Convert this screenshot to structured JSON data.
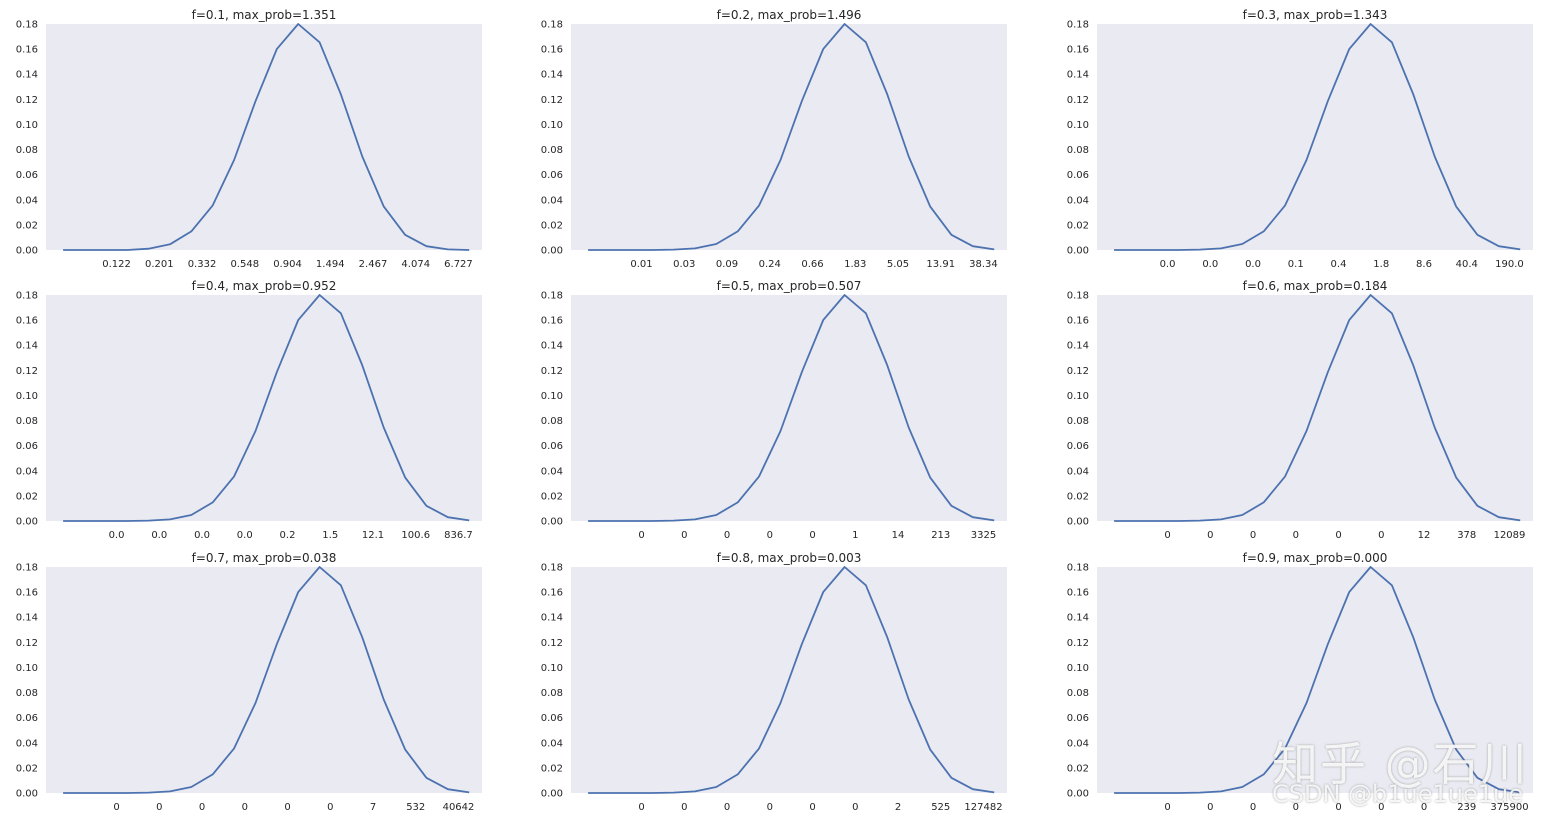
{
  "chart_data": [
    {
      "type": "line",
      "title": "f=0.1, max_prob=1.351",
      "xticklabels": [
        "0.122",
        "0.201",
        "0.332",
        "0.548",
        "0.904",
        "1.494",
        "2.467",
        "4.074",
        "6.727"
      ],
      "x": [
        -5,
        -4,
        -3,
        -2,
        -1,
        0,
        1,
        2,
        3,
        4,
        5,
        6,
        7,
        8,
        9,
        10,
        11,
        12,
        13,
        14
      ],
      "y": [
        0.0,
        0.0,
        0.0,
        0.0,
        0.001,
        0.0045,
        0.0148,
        0.0355,
        0.0717,
        0.1185,
        0.16,
        0.18,
        0.1654,
        0.1239,
        0.0745,
        0.0347,
        0.0121,
        0.003,
        0.0005,
        0.0
      ],
      "ylim": [
        0,
        0.18
      ],
      "yticks": [
        "0.00",
        "0.02",
        "0.04",
        "0.06",
        "0.08",
        "0.10",
        "0.12",
        "0.14",
        "0.16",
        "0.18"
      ],
      "grid": false
    },
    {
      "type": "line",
      "title": "f=0.2, max_prob=1.496",
      "xticklabels": [
        "0.01",
        "0.03",
        "0.09",
        "0.24",
        "0.66",
        "1.83",
        "5.05",
        "13.91",
        "38.34"
      ],
      "x": [
        -5,
        -4,
        -3,
        -2,
        -1,
        0,
        1,
        2,
        3,
        4,
        5,
        6,
        7,
        8,
        9,
        10,
        11,
        12,
        13,
        14
      ],
      "y": [
        0.0,
        0.0,
        0.0,
        0.0,
        0.0003,
        0.0013,
        0.0048,
        0.0148,
        0.0355,
        0.0717,
        0.1185,
        0.16,
        0.18,
        0.1654,
        0.1239,
        0.0745,
        0.0347,
        0.0121,
        0.003,
        0.0005
      ],
      "ylim": [
        0,
        0.18
      ],
      "yticks": [
        "0.00",
        "0.02",
        "0.04",
        "0.06",
        "0.08",
        "0.10",
        "0.12",
        "0.14",
        "0.16",
        "0.18"
      ],
      "grid": false
    },
    {
      "type": "line",
      "title": "f=0.3, max_prob=1.343",
      "xticklabels": [
        "0.0",
        "0.0",
        "0.0",
        "0.1",
        "0.4",
        "1.8",
        "8.6",
        "40.4",
        "190.0"
      ],
      "x": [
        -5,
        -4,
        -3,
        -2,
        -1,
        0,
        1,
        2,
        3,
        4,
        5,
        6,
        7,
        8,
        9,
        10,
        11,
        12,
        13,
        14
      ],
      "y": [
        0.0,
        0.0,
        0.0,
        0.0,
        0.0003,
        0.0013,
        0.0048,
        0.0148,
        0.0355,
        0.0717,
        0.1185,
        0.16,
        0.18,
        0.1654,
        0.1239,
        0.0745,
        0.0347,
        0.0121,
        0.003,
        0.0005
      ],
      "ylim": [
        0,
        0.18
      ],
      "yticks": [
        "0.00",
        "0.02",
        "0.04",
        "0.06",
        "0.08",
        "0.10",
        "0.12",
        "0.14",
        "0.16",
        "0.18"
      ],
      "grid": false
    },
    {
      "type": "line",
      "title": "f=0.4, max_prob=0.952",
      "xticklabels": [
        "0.0",
        "0.0",
        "0.0",
        "0.0",
        "0.2",
        "1.5",
        "12.1",
        "100.6",
        "836.7"
      ],
      "x": [
        -5,
        -4,
        -3,
        -2,
        -1,
        0,
        1,
        2,
        3,
        4,
        5,
        6,
        7,
        8,
        9,
        10,
        11,
        12,
        13,
        14
      ],
      "y": [
        0.0,
        0.0,
        0.0,
        0.0,
        0.0003,
        0.0013,
        0.0048,
        0.0148,
        0.0355,
        0.0717,
        0.1185,
        0.16,
        0.18,
        0.1654,
        0.1239,
        0.0745,
        0.0347,
        0.0121,
        0.003,
        0.0005
      ],
      "ylim": [
        0,
        0.18
      ],
      "yticks": [
        "0.00",
        "0.02",
        "0.04",
        "0.06",
        "0.08",
        "0.10",
        "0.12",
        "0.14",
        "0.16",
        "0.18"
      ],
      "grid": false
    },
    {
      "type": "line",
      "title": "f=0.5, max_prob=0.507",
      "xticklabels": [
        "0",
        "0",
        "0",
        "0",
        "0",
        "1",
        "14",
        "213",
        "3325"
      ],
      "x": [
        -5,
        -4,
        -3,
        -2,
        -1,
        0,
        1,
        2,
        3,
        4,
        5,
        6,
        7,
        8,
        9,
        10,
        11,
        12,
        13,
        14
      ],
      "y": [
        0.0,
        0.0,
        0.0,
        0.0,
        0.0003,
        0.0013,
        0.0048,
        0.0148,
        0.0355,
        0.0717,
        0.1185,
        0.16,
        0.18,
        0.1654,
        0.1239,
        0.0745,
        0.0347,
        0.0121,
        0.003,
        0.0005
      ],
      "ylim": [
        0,
        0.18
      ],
      "yticks": [
        "0.00",
        "0.02",
        "0.04",
        "0.06",
        "0.08",
        "0.10",
        "0.12",
        "0.14",
        "0.16",
        "0.18"
      ],
      "grid": false
    },
    {
      "type": "line",
      "title": "f=0.6, max_prob=0.184",
      "xticklabels": [
        "0",
        "0",
        "0",
        "0",
        "0",
        "0",
        "12",
        "378",
        "12089"
      ],
      "x": [
        -5,
        -4,
        -3,
        -2,
        -1,
        0,
        1,
        2,
        3,
        4,
        5,
        6,
        7,
        8,
        9,
        10,
        11,
        12,
        13,
        14
      ],
      "y": [
        0.0,
        0.0,
        0.0,
        0.0,
        0.0003,
        0.0013,
        0.0048,
        0.0148,
        0.0355,
        0.0717,
        0.1185,
        0.16,
        0.18,
        0.1654,
        0.1239,
        0.0745,
        0.0347,
        0.0121,
        0.003,
        0.0005
      ],
      "ylim": [
        0,
        0.18
      ],
      "yticks": [
        "0.00",
        "0.02",
        "0.04",
        "0.06",
        "0.08",
        "0.10",
        "0.12",
        "0.14",
        "0.16",
        "0.18"
      ],
      "grid": false
    },
    {
      "type": "line",
      "title": "f=0.7, max_prob=0.038",
      "xticklabels": [
        "0",
        "0",
        "0",
        "0",
        "0",
        "0",
        "7",
        "532",
        "40642"
      ],
      "x": [
        -5,
        -4,
        -3,
        -2,
        -1,
        0,
        1,
        2,
        3,
        4,
        5,
        6,
        7,
        8,
        9,
        10,
        11,
        12,
        13,
        14
      ],
      "y": [
        0.0,
        0.0,
        0.0,
        0.0,
        0.0003,
        0.0013,
        0.0048,
        0.0148,
        0.0355,
        0.0717,
        0.1185,
        0.16,
        0.18,
        0.1654,
        0.1239,
        0.0745,
        0.0347,
        0.0121,
        0.003,
        0.0005
      ],
      "ylim": [
        0,
        0.18
      ],
      "yticks": [
        "0.00",
        "0.02",
        "0.04",
        "0.06",
        "0.08",
        "0.10",
        "0.12",
        "0.14",
        "0.16",
        "0.18"
      ],
      "grid": false
    },
    {
      "type": "line",
      "title": "f=0.8, max_prob=0.003",
      "xticklabels": [
        "0",
        "0",
        "0",
        "0",
        "0",
        "0",
        "2",
        "525",
        "127482"
      ],
      "x": [
        -5,
        -4,
        -3,
        -2,
        -1,
        0,
        1,
        2,
        3,
        4,
        5,
        6,
        7,
        8,
        9,
        10,
        11,
        12,
        13,
        14
      ],
      "y": [
        0.0,
        0.0,
        0.0,
        0.0,
        0.0003,
        0.0013,
        0.0048,
        0.0148,
        0.0355,
        0.0717,
        0.1185,
        0.16,
        0.18,
        0.1654,
        0.1239,
        0.0745,
        0.0347,
        0.0121,
        0.003,
        0.0005
      ],
      "ylim": [
        0,
        0.18
      ],
      "yticks": [
        "0.00",
        "0.02",
        "0.04",
        "0.06",
        "0.08",
        "0.10",
        "0.12",
        "0.14",
        "0.16",
        "0.18"
      ],
      "grid": false
    },
    {
      "type": "line",
      "title": "f=0.9, max_prob=0.000",
      "xticklabels": [
        "0",
        "0",
        "0",
        "0",
        "0",
        "0",
        "0",
        "239",
        "375900"
      ],
      "x": [
        -5,
        -4,
        -3,
        -2,
        -1,
        0,
        1,
        2,
        3,
        4,
        5,
        6,
        7,
        8,
        9,
        10,
        11,
        12,
        13,
        14
      ],
      "y": [
        0.0,
        0.0,
        0.0,
        0.0,
        0.0003,
        0.0013,
        0.0048,
        0.0148,
        0.0355,
        0.0717,
        0.1185,
        0.16,
        0.18,
        0.1654,
        0.1239,
        0.0745,
        0.0347,
        0.0121,
        0.003,
        0.0005
      ],
      "ylim": [
        0,
        0.18
      ],
      "yticks": [
        "0.00",
        "0.02",
        "0.04",
        "0.06",
        "0.08",
        "0.10",
        "0.12",
        "0.14",
        "0.16",
        "0.18"
      ],
      "grid": false
    }
  ],
  "colors": {
    "background": "#eaeaf2",
    "line": "#4c72b0"
  },
  "watermark": {
    "main": "知乎 @石川",
    "sub": "CSDN @b1ue1ue1ue"
  }
}
